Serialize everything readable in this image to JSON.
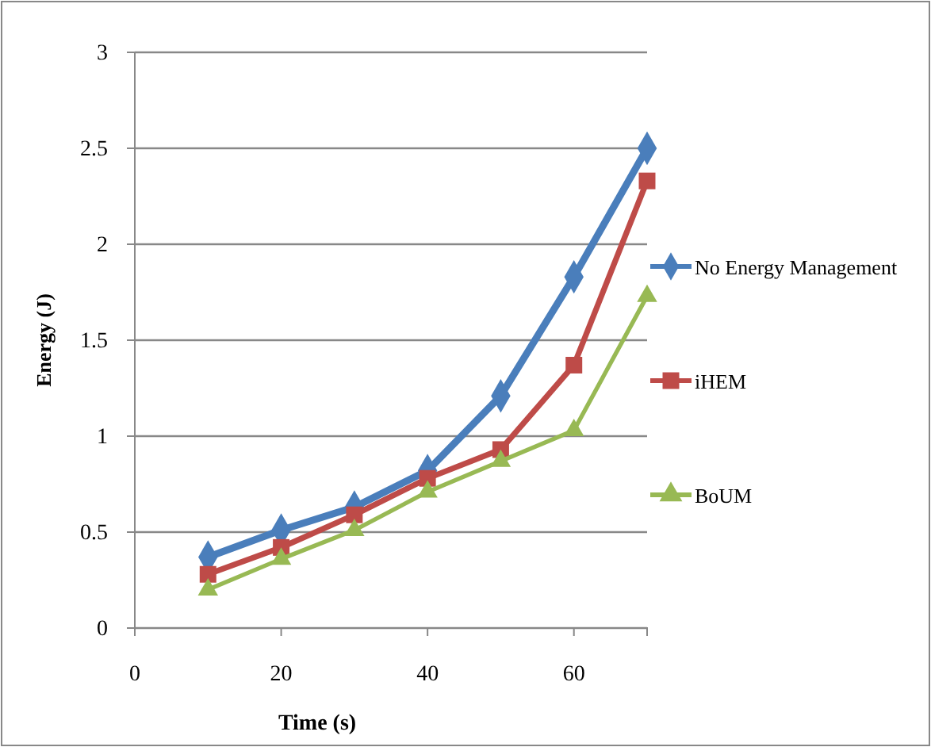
{
  "chart_data": {
    "type": "line",
    "xlabel": "Time (s)",
    "ylabel": "Energy (J)",
    "x": [
      10,
      20,
      30,
      40,
      50,
      60,
      70
    ],
    "series": [
      {
        "name": "No Energy Management",
        "color": "#4a7ebb",
        "values": [
          0.37,
          0.51,
          0.63,
          0.82,
          1.21,
          1.83,
          2.5
        ],
        "marker": "diamond"
      },
      {
        "name": "iHEM",
        "color": "#be4b48",
        "values": [
          0.28,
          0.42,
          0.59,
          0.78,
          0.93,
          1.37,
          2.33
        ],
        "marker": "square"
      },
      {
        "name": "BoUM",
        "color": "#98b954",
        "values": [
          0.2,
          0.36,
          0.51,
          0.71,
          0.87,
          1.03,
          1.73
        ],
        "marker": "triangle"
      }
    ],
    "xlim": [
      0,
      70
    ],
    "xticks": [
      0,
      20,
      40,
      60
    ],
    "ylim": [
      0,
      3
    ],
    "yticks": [
      0,
      0.5,
      1,
      1.5,
      2,
      2.5,
      3
    ],
    "grid": "y",
    "legend": "right"
  }
}
